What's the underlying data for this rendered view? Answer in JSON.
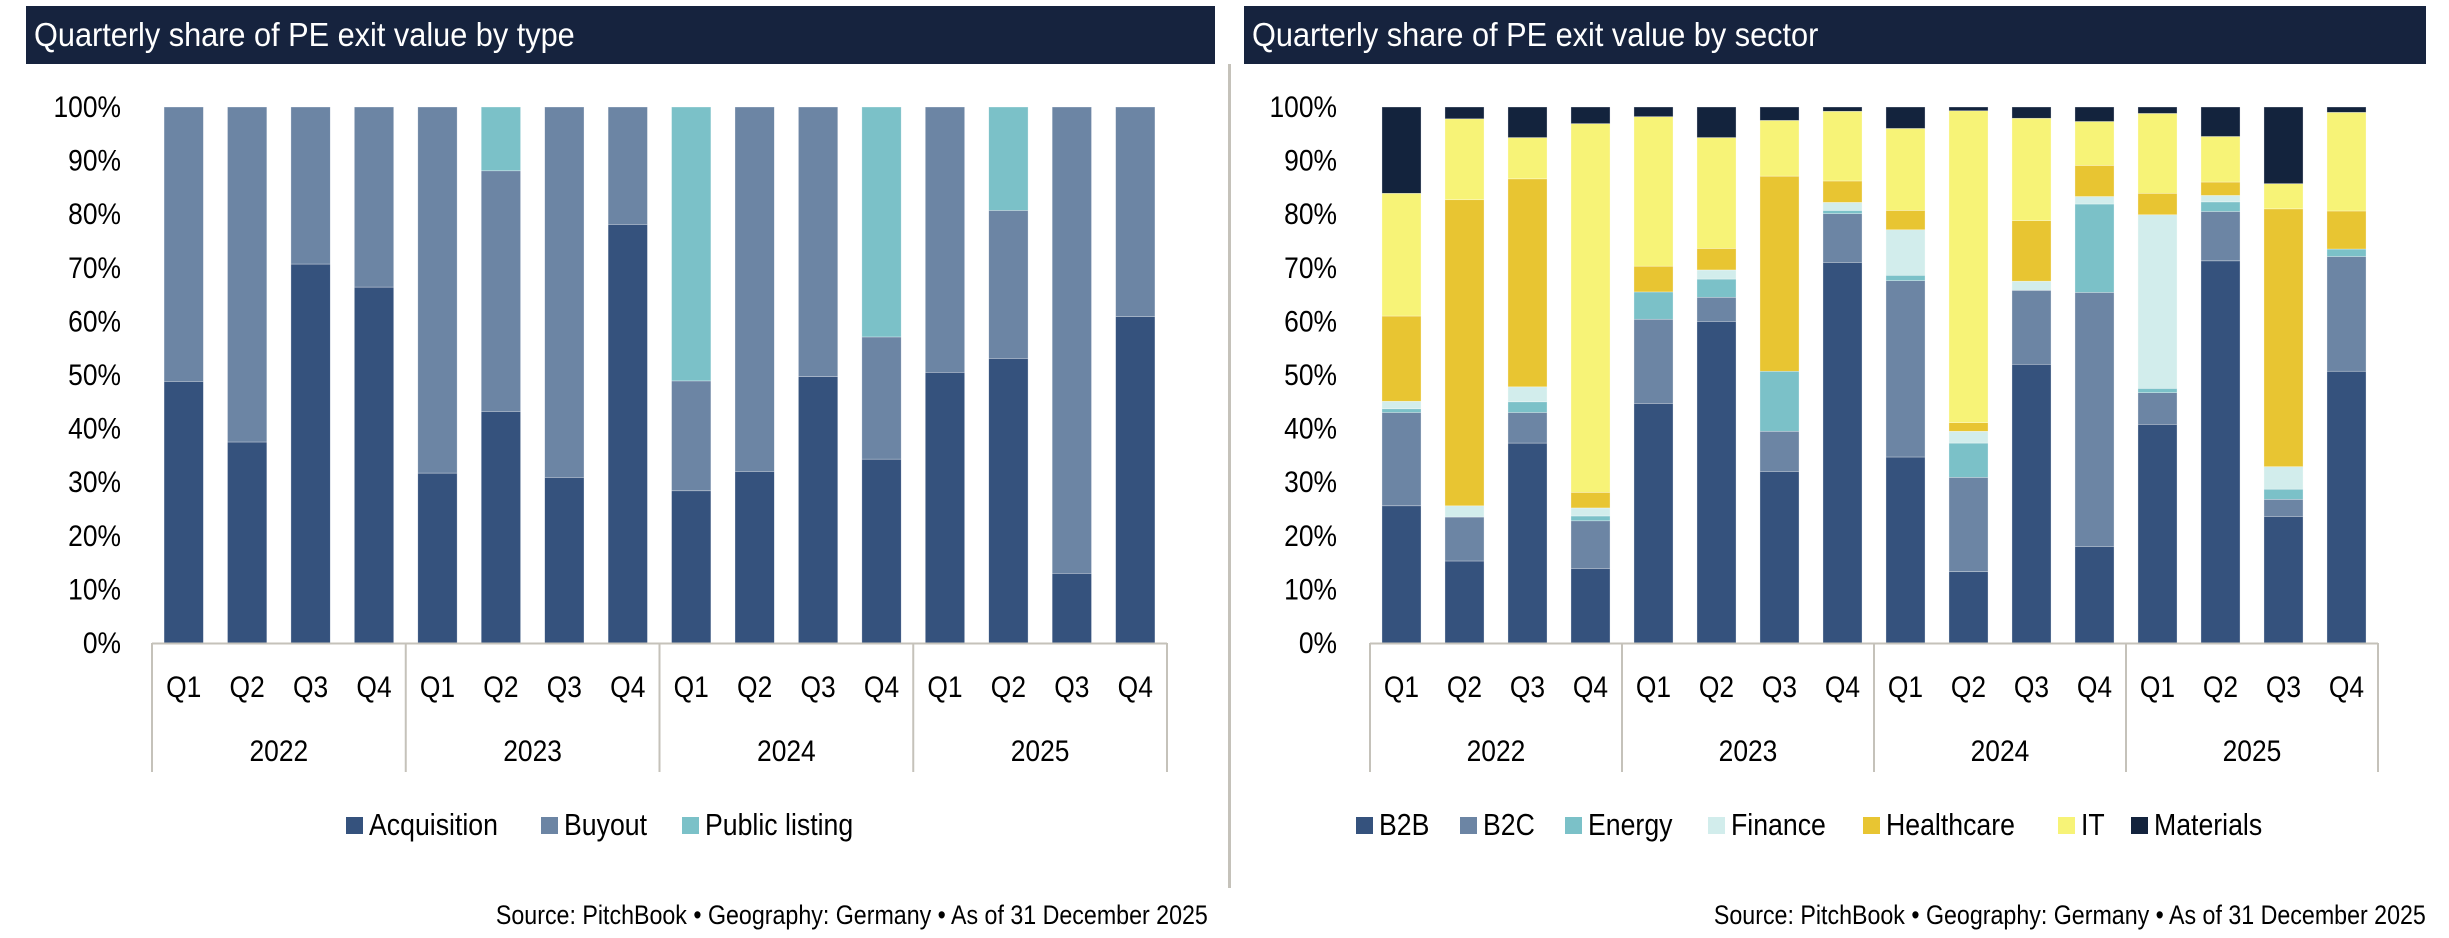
{
  "left_panel": {
    "title": "Quarterly share of PE exit value by type",
    "source": "Source: PitchBook • Geography: Germany • As of 31 December 2025"
  },
  "right_panel": {
    "title": "Quarterly share of PE exit value by sector",
    "source": "Source: PitchBook • Geography: Germany • As of 31 December 2025"
  },
  "chart_data": [
    {
      "type": "bar",
      "stacked": true,
      "title": "Quarterly share of PE exit value by type",
      "xlabel": "",
      "ylabel": "",
      "ylim": [
        0,
        100
      ],
      "yticks": [
        "0%",
        "10%",
        "20%",
        "30%",
        "40%",
        "50%",
        "60%",
        "70%",
        "80%",
        "90%",
        "100%"
      ],
      "categories": [
        "Q1",
        "Q2",
        "Q3",
        "Q4",
        "Q1",
        "Q2",
        "Q3",
        "Q4",
        "Q1",
        "Q2",
        "Q3",
        "Q4",
        "Q1",
        "Q2",
        "Q3",
        "Q4"
      ],
      "groups": [
        {
          "label": "2022",
          "count": 4
        },
        {
          "label": "2023",
          "count": 4
        },
        {
          "label": "2024",
          "count": 4
        },
        {
          "label": "2025",
          "count": 4
        }
      ],
      "legend_position": "bottom",
      "grid": false,
      "series": [
        {
          "name": "Acquisition",
          "color": "#35527D",
          "values": [
            48.8,
            37.5,
            70.7,
            66.4,
            31.7,
            43.2,
            30.9,
            78.1,
            28.4,
            32.0,
            49.7,
            34.3,
            50.5,
            53.1,
            13.0,
            60.9
          ]
        },
        {
          "name": "Buyout",
          "color": "#6C85A4",
          "values": [
            51.2,
            62.5,
            29.3,
            33.6,
            68.3,
            44.9,
            69.1,
            21.9,
            20.5,
            68.0,
            50.3,
            22.8,
            49.5,
            27.6,
            87.0,
            39.1
          ]
        },
        {
          "name": "Public listing",
          "color": "#7BC1C8",
          "values": [
            0,
            0,
            0,
            0,
            0,
            11.9,
            0,
            0,
            51.1,
            0,
            0,
            42.9,
            0,
            19.3,
            0,
            0
          ]
        }
      ]
    },
    {
      "type": "bar",
      "stacked": true,
      "title": "Quarterly share of PE exit value by sector",
      "xlabel": "",
      "ylabel": "",
      "ylim": [
        0,
        100
      ],
      "yticks": [
        "0%",
        "10%",
        "20%",
        "30%",
        "40%",
        "50%",
        "60%",
        "70%",
        "80%",
        "90%",
        "100%"
      ],
      "categories": [
        "Q1",
        "Q2",
        "Q3",
        "Q4",
        "Q1",
        "Q2",
        "Q3",
        "Q4",
        "Q1",
        "Q2",
        "Q3",
        "Q4",
        "Q1",
        "Q2",
        "Q3",
        "Q4"
      ],
      "groups": [
        {
          "label": "2022",
          "count": 4
        },
        {
          "label": "2023",
          "count": 4
        },
        {
          "label": "2024",
          "count": 4
        },
        {
          "label": "2025",
          "count": 4
        }
      ],
      "legend_position": "bottom",
      "grid": false,
      "series": [
        {
          "name": "B2B",
          "color": "#35527D",
          "values": [
            25.6,
            15.3,
            37.3,
            13.9,
            44.7,
            60.0,
            32.0,
            71.0,
            34.7,
            13.3,
            52.0,
            18.0,
            40.8,
            71.3,
            23.6,
            50.7
          ]
        },
        {
          "name": "B2C",
          "color": "#6C85A4",
          "values": [
            17.4,
            8.2,
            5.7,
            8.9,
            15.7,
            4.5,
            7.5,
            9.1,
            32.9,
            17.6,
            13.8,
            47.4,
            5.9,
            9.2,
            3.2,
            21.4
          ]
        },
        {
          "name": "Energy",
          "color": "#7BC1C8",
          "values": [
            0.7,
            0,
            2.0,
            0.9,
            5.1,
            3.4,
            11.2,
            0.6,
            1.0,
            6.4,
            0,
            16.5,
            0.8,
            1.8,
            1.9,
            1.4
          ]
        },
        {
          "name": "Finance",
          "color": "#D2EDEC",
          "values": [
            1.4,
            2.1,
            2.8,
            1.5,
            0,
            1.7,
            0,
            1.5,
            8.5,
            2.2,
            1.7,
            1.4,
            32.4,
            1.2,
            4.2,
            0
          ]
        },
        {
          "name": "Healthcare",
          "color": "#E8C532",
          "values": [
            15.9,
            57.1,
            38.8,
            2.9,
            4.8,
            4.0,
            36.4,
            4.0,
            3.6,
            1.6,
            11.3,
            5.8,
            4.0,
            2.5,
            48.1,
            7.1
          ]
        },
        {
          "name": "IT",
          "color": "#F7F377",
          "values": [
            22.9,
            15.1,
            7.7,
            68.8,
            27.9,
            20.7,
            10.4,
            13.0,
            15.3,
            58.2,
            19.1,
            8.2,
            14.9,
            8.5,
            4.7,
            18.4
          ]
        },
        {
          "name": "Materials",
          "color": "#13233D",
          "values": [
            16.1,
            2.2,
            5.7,
            3.1,
            1.8,
            5.7,
            2.5,
            0.8,
            4.0,
            0.7,
            2.1,
            2.7,
            1.2,
            5.5,
            14.3,
            1.0
          ]
        }
      ]
    }
  ]
}
